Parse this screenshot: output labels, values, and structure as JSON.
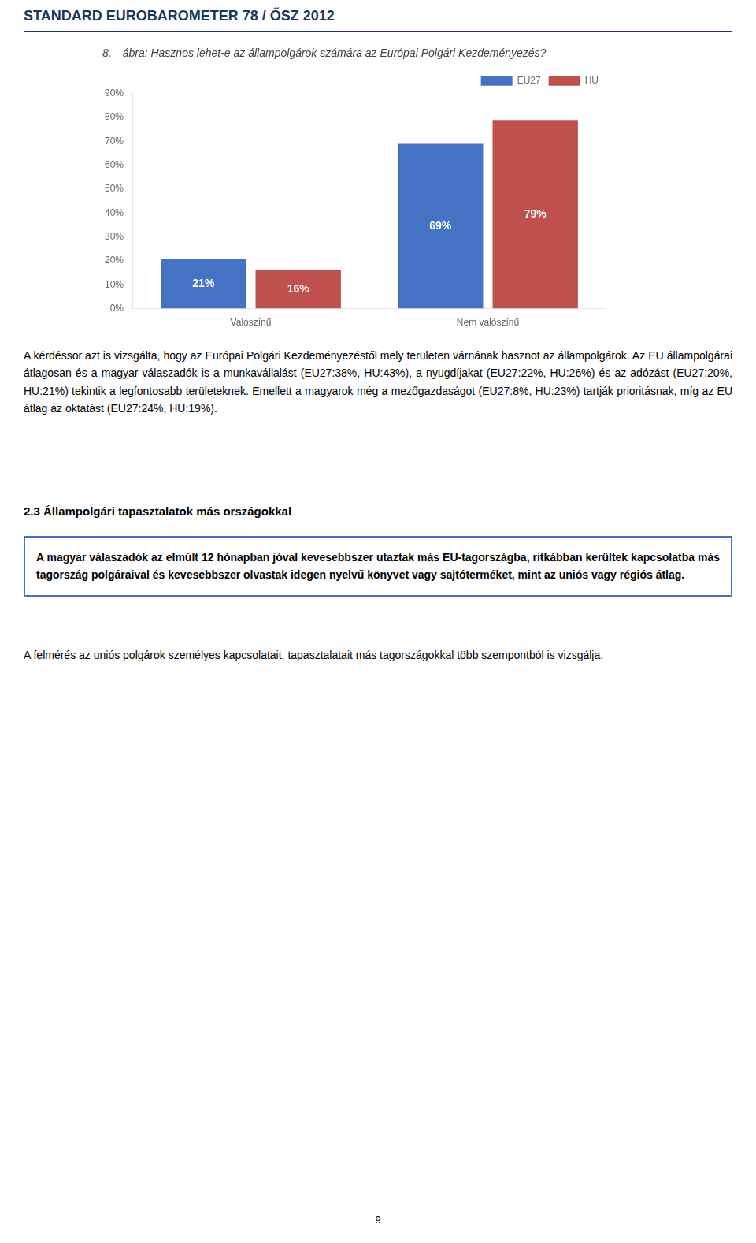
{
  "chart_data": {
    "type": "bar",
    "title": "8. ábra: Hasznos lehet-e az állampolgárok számára az Európai Polgári Kezdeményezés?",
    "categories": [
      "Valószínű",
      "Nem valószínű"
    ],
    "series": [
      {
        "name": "EU27",
        "color": "#4472C4",
        "values": [
          21,
          69
        ],
        "value_labels": [
          "21%",
          "69%"
        ]
      },
      {
        "name": "HU",
        "color": "#C0504D",
        "values": [
          16,
          79
        ],
        "value_labels": [
          "16%",
          "79%"
        ]
      }
    ],
    "ylim": [
      0,
      90
    ],
    "yticks": [
      {
        "value": 0,
        "label": "0%"
      },
      {
        "value": 10,
        "label": "10%"
      },
      {
        "value": 20,
        "label": "20%"
      },
      {
        "value": 30,
        "label": "30%"
      },
      {
        "value": 40,
        "label": "40%"
      },
      {
        "value": 50,
        "label": "50%"
      },
      {
        "value": 60,
        "label": "60%"
      },
      {
        "value": 70,
        "label": "70%"
      },
      {
        "value": 80,
        "label": "80%"
      },
      {
        "value": 90,
        "label": "90%"
      }
    ],
    "grid": false,
    "legend": "upper right",
    "data_labels": true,
    "annotations": [
      "STANDARD EUROBAROMETER 78 / ŐSZ 2012",
      "A kérdéssor azt is vizsgálta, hogy az Európai Polgári Kezdeményezéstől mely területen várnának hasznot az állampolgárok. Az EU állampolgárai átlagosan és a magyar válaszadók is a munkavállalást (EU27:38%, HU:43%), a nyugdíjakat (EU27:22%, HU:26%) és az adózást (EU27:20%, HU:21%) tekintik a legfontosabb területeknek. Emellett a magyarok még a mezőgazdaságot (EU27:8%, HU:23%) tartják prioritásnak, míg az EU átlag az oktatást (EU27:24%, HU:19%).",
      "2.3 Állampolgári tapasztalatok más országokkal",
      "A magyar válaszadók az elmúlt 12 hónapban jóval kevesebbszer utaztak más EU-tagországba, ritkábban kerültek kapcsolatba más tagország polgáraival és kevesebbszer olvastak idegen nyelvű könyvet vagy sajtóterméket, mint az uniós vagy régiós átlag.",
      "A felmérés az uniós polgárok személyes kapcsolatait, tapasztalatait más tagországokkal több szempontból is vizsgálja.",
      "9"
    ]
  }
}
